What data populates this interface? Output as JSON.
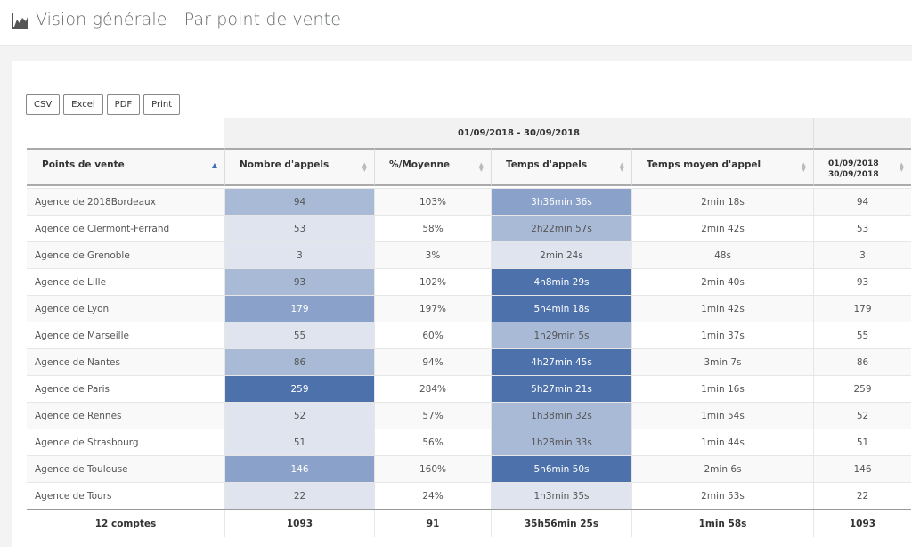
{
  "page": {
    "title": "Vision générale - Par point de vente",
    "title_icon": "area-chart-icon"
  },
  "toolbar": {
    "buttons": [
      "CSV",
      "Excel",
      "PDF",
      "Print"
    ]
  },
  "table": {
    "group_header": "01/09/2018 - 30/09/2018",
    "columns": [
      "Points de vente",
      "Nombre d'appels",
      "%/Moyenne",
      "Temps d'appels",
      "Temps moyen d'appel",
      "01/09/2018\n30/09/2018"
    ],
    "rows": [
      [
        "Agence de 2018Bordeaux",
        "94",
        "103%",
        "3h36min 36s",
        "2min 18s",
        "94"
      ],
      [
        "Agence de Clermont-Ferrand",
        "53",
        "58%",
        "2h22min 57s",
        "2min 42s",
        "53"
      ],
      [
        "Agence de Grenoble",
        "3",
        "3%",
        "2min 24s",
        "48s",
        "3"
      ],
      [
        "Agence de Lille",
        "93",
        "102%",
        "4h8min 29s",
        "2min 40s",
        "93"
      ],
      [
        "Agence de Lyon",
        "179",
        "197%",
        "5h4min 18s",
        "1min 42s",
        "179"
      ],
      [
        "Agence de Marseille",
        "55",
        "60%",
        "1h29min 5s",
        "1min 37s",
        "55"
      ],
      [
        "Agence de Nantes",
        "86",
        "94%",
        "4h27min 45s",
        "3min 7s",
        "86"
      ],
      [
        "Agence de Paris",
        "259",
        "284%",
        "5h27min 21s",
        "1min 16s",
        "259"
      ],
      [
        "Agence de Rennes",
        "52",
        "57%",
        "1h38min 32s",
        "1min 54s",
        "52"
      ],
      [
        "Agence de Strasbourg",
        "51",
        "56%",
        "1h28min 33s",
        "1min 44s",
        "51"
      ],
      [
        "Agence de Toulouse",
        "146",
        "160%",
        "5h6min 50s",
        "2min 6s",
        "146"
      ],
      [
        "Agence de Tours",
        "22",
        "24%",
        "1h3min 35s",
        "2min 53s",
        "22"
      ]
    ],
    "heat_appels": [
      "#a9bad6",
      "#dfe4ef",
      "#dfe4ef",
      "#a9bad6",
      "#8aa2c9",
      "#dfe4ef",
      "#a9bad6",
      "#4d72ab",
      "#dfe4ef",
      "#dfe4ef",
      "#8aa2c9",
      "#dfe4ef"
    ],
    "heat_temps": [
      "#8aa2c9",
      "#a9bad6",
      "#dfe4ef",
      "#4d72ab",
      "#4d72ab",
      "#a9bad6",
      "#4d72ab",
      "#4d72ab",
      "#a9bad6",
      "#a9bad6",
      "#4d72ab",
      "#dfe4ef"
    ],
    "footer": [
      "12 comptes",
      "1093",
      "91",
      "35h56min 25s",
      "1min 58s",
      "1093"
    ]
  },
  "colors": {
    "accent": "#3d6fb6",
    "row_alt": "#f9f9f9"
  }
}
